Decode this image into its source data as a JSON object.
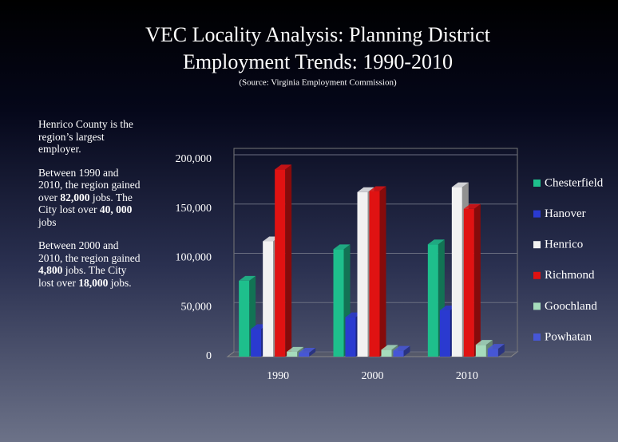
{
  "title": [
    "VEC Locality Analysis: Planning District",
    "Employment Trends: 1990-2010"
  ],
  "subtitle": "(Source: Virginia Employment Commission)",
  "notes": [
    [
      "Henrico County is the region’s largest employer."
    ],
    [
      "Between 1990 and 2010, the region gained over ",
      {
        "bold": "82,000"
      },
      " jobs. The City lost over ",
      {
        "bold": "40, 000"
      },
      " jobs"
    ],
    [
      "Between 2000 and 2010, the region gained ",
      {
        "bold": "4,800"
      },
      " jobs.  The City lost over ",
      {
        "bold": "18,000"
      },
      " jobs."
    ]
  ],
  "chart_data": {
    "type": "bar3d",
    "categories": [
      "1990",
      "2000",
      "2010"
    ],
    "series": [
      {
        "name": "Chesterfield",
        "color": "#1ebf8c",
        "values": [
          77000,
          109000,
          114000
        ]
      },
      {
        "name": "Hanover",
        "color": "#2a3ad0",
        "values": [
          28000,
          40000,
          47000
        ]
      },
      {
        "name": "Henrico",
        "color": "#f2f2f2",
        "values": [
          117000,
          167000,
          172000
        ]
      },
      {
        "name": "Richmond",
        "color": "#e01212",
        "values": [
          190000,
          168000,
          150000
        ]
      },
      {
        "name": "Goochland",
        "color": "#a6dcbc",
        "values": [
          5000,
          7000,
          12000
        ]
      },
      {
        "name": "Powhatan",
        "color": "#4656d6",
        "values": [
          4000,
          6000,
          8000
        ]
      }
    ],
    "ylim": [
      0,
      200000
    ],
    "yticks": [
      0,
      {
        "value": 50000,
        "label": "50,000"
      },
      {
        "value": 100000,
        "label": "100,000"
      },
      {
        "value": 150000,
        "label": "150,000"
      },
      {
        "value": 200000,
        "label": "200,000"
      }
    ],
    "grid": true
  }
}
